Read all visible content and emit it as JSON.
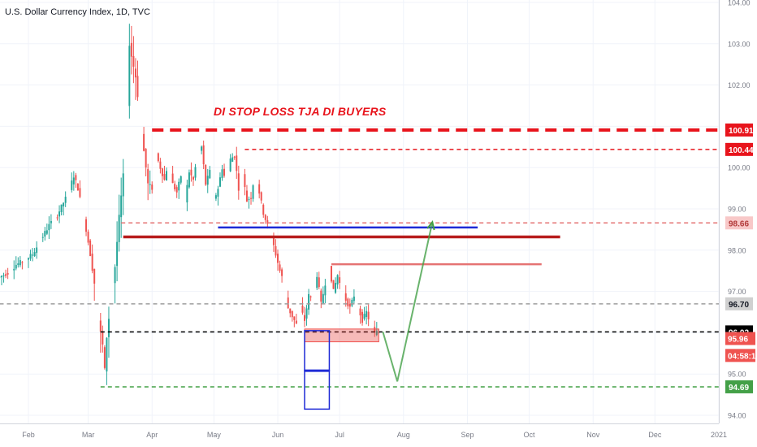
{
  "header": {
    "symbol_title": "U.S. Dollar Currency Index, 1D, TVC"
  },
  "annotation": {
    "text": "DI STOP LOSS TJA DI BUYERS"
  },
  "colors": {
    "up": "#26a69a",
    "down": "#ef5350",
    "red": "#e8141c",
    "darkred": "#b71c1c",
    "blue": "#1e2ad6",
    "green": "#43a047",
    "pink": "#e57373",
    "gray": "#9e9e9e"
  },
  "chart_data": {
    "type": "candlestick",
    "title": "U.S. Dollar Currency Index, 1D, TVC",
    "ylim": [
      93.85,
      104.05
    ],
    "y_ticks": [
      "94.00",
      "95.00",
      "96.00",
      "97.00",
      "98.00",
      "99.00",
      "100.00",
      "101.00",
      "102.00",
      "103.00",
      "104.00"
    ],
    "x_ticks": [
      {
        "label": "Feb",
        "day": 0
      },
      {
        "label": "Mar",
        "day": 29
      },
      {
        "label": "Apr",
        "day": 60
      },
      {
        "label": "May",
        "day": 90
      },
      {
        "label": "Jun",
        "day": 121
      },
      {
        "label": "Jul",
        "day": 151
      },
      {
        "label": "Aug",
        "day": 182
      },
      {
        "label": "Sep",
        "day": 213
      },
      {
        "label": "Oct",
        "day": 243
      },
      {
        "label": "Nov",
        "day": 274
      },
      {
        "label": "Dec",
        "day": 304
      },
      {
        "label": "2021",
        "day": 335
      }
    ],
    "price_path": [
      [
        -14,
        97.35
      ],
      [
        -10,
        97.45
      ],
      [
        -6,
        97.65
      ],
      [
        -2,
        97.75
      ],
      [
        2,
        97.9
      ],
      [
        6,
        98.25
      ],
      [
        10,
        98.6
      ],
      [
        14,
        98.85
      ],
      [
        18,
        99.25
      ],
      [
        20,
        99.5
      ],
      [
        22,
        99.8
      ],
      [
        24,
        99.5
      ],
      [
        26,
        99.0
      ],
      [
        28,
        98.5
      ],
      [
        30,
        97.9
      ],
      [
        32,
        97.2
      ],
      [
        34,
        96.3
      ],
      [
        36,
        95.7
      ],
      [
        37,
        95.1
      ],
      [
        38,
        95.9
      ],
      [
        40,
        96.8
      ],
      [
        42,
        97.6
      ],
      [
        44,
        98.8
      ],
      [
        46,
        99.8
      ],
      [
        48,
        101.5
      ],
      [
        49,
        103.0
      ],
      [
        50,
        102.7
      ],
      [
        52,
        102.2
      ],
      [
        54,
        101.3
      ],
      [
        56,
        100.4
      ],
      [
        58,
        99.6
      ],
      [
        60,
        99.5
      ],
      [
        62,
        100.3
      ],
      [
        64,
        100.0
      ],
      [
        66,
        99.7
      ],
      [
        68,
        100.2
      ],
      [
        70,
        99.6
      ],
      [
        72,
        99.4
      ],
      [
        74,
        99.8
      ],
      [
        76,
        99.2
      ],
      [
        78,
        99.9
      ],
      [
        80,
        99.7
      ],
      [
        82,
        100.3
      ],
      [
        84,
        100.5
      ],
      [
        86,
        99.6
      ],
      [
        88,
        99.9
      ],
      [
        90,
        99.2
      ],
      [
        92,
        99.5
      ],
      [
        94,
        100.0
      ],
      [
        96,
        99.6
      ],
      [
        98,
        100.2
      ],
      [
        100,
        100.3
      ],
      [
        102,
        99.5
      ],
      [
        104,
        99.8
      ],
      [
        106,
        99.2
      ],
      [
        108,
        99.3
      ],
      [
        110,
        99.9
      ],
      [
        112,
        99.4
      ],
      [
        114,
        98.9
      ],
      [
        116,
        98.6
      ],
      [
        118,
        98.3
      ],
      [
        120,
        97.9
      ],
      [
        122,
        97.5
      ],
      [
        124,
        97.2
      ],
      [
        126,
        96.6
      ],
      [
        128,
        96.4
      ],
      [
        130,
        96.2
      ],
      [
        132,
        96.6
      ],
      [
        134,
        96.3
      ],
      [
        136,
        96.9
      ],
      [
        138,
        96.8
      ],
      [
        140,
        97.4
      ],
      [
        142,
        96.7
      ],
      [
        144,
        97.2
      ],
      [
        146,
        97.6
      ],
      [
        148,
        97.0
      ],
      [
        150,
        97.4
      ],
      [
        152,
        97.0
      ],
      [
        154,
        96.8
      ],
      [
        156,
        96.6
      ],
      [
        158,
        96.9
      ],
      [
        160,
        96.6
      ],
      [
        162,
        96.3
      ],
      [
        164,
        96.5
      ],
      [
        166,
        96.2
      ],
      [
        168,
        96.0
      ],
      [
        170,
        96.02
      ]
    ],
    "horizontal_lines": [
      {
        "price": 100.91,
        "label": "100.91",
        "style": "thick-dash",
        "color": "#e8141c"
      },
      {
        "price": 100.44,
        "label": "100.44",
        "style": "dash",
        "color": "#e8141c"
      },
      {
        "price": 98.66,
        "label": "98.66",
        "style": "dash",
        "color": "#e57373"
      },
      {
        "price": 96.7,
        "label": "96.70",
        "style": "dash",
        "color": "#9e9e9e"
      },
      {
        "price": 96.02,
        "label": "96.02",
        "style": "dash",
        "color": "#000000"
      },
      {
        "price": 94.69,
        "label": "94.69",
        "style": "dash",
        "color": "#43a047"
      }
    ],
    "price_labels": [
      {
        "text": "95.96",
        "price": 95.86
      },
      {
        "text": "04:58:12",
        "price": 95.45
      }
    ],
    "drawings": {
      "red_support": {
        "d0": 46,
        "d1": 258,
        "price": 98.32
      },
      "blue_support": {
        "d0": 92,
        "d1": 218,
        "price": 98.55
      },
      "pink_resistance": {
        "d0": 147,
        "d1": 249,
        "price": 97.66
      },
      "red_zone": {
        "d0": 134,
        "d1": 170,
        "p_top": 96.09,
        "p_bottom": 95.78
      },
      "blue_boxes": [
        {
          "d0": 134,
          "d1": 146,
          "p_top": 96.05,
          "p_bottom": 95.08
        },
        {
          "d0": 134,
          "d1": 146,
          "p_top": 95.08,
          "p_bottom": 94.15
        }
      ],
      "green_path": [
        [
          172,
          96.02
        ],
        [
          179,
          94.82
        ],
        [
          196,
          98.68
        ]
      ]
    }
  }
}
